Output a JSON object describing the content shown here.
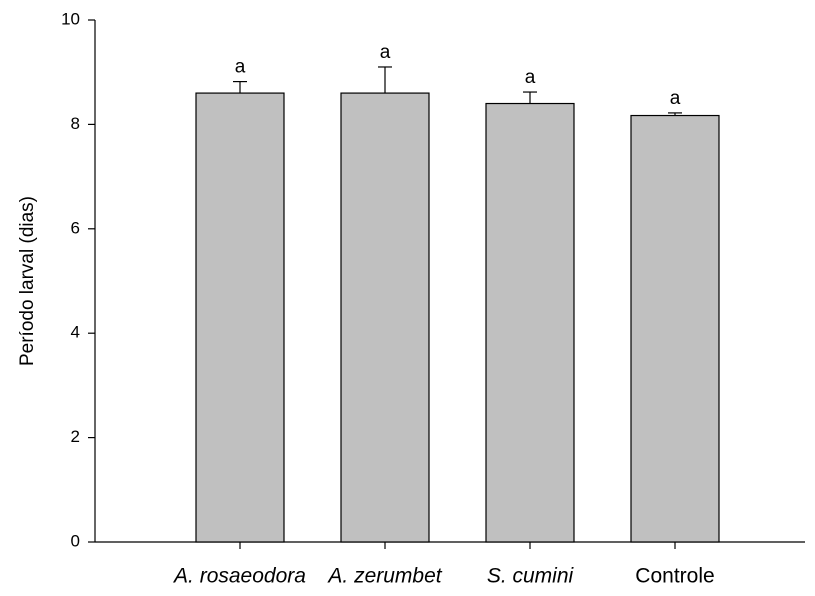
{
  "chart_data": {
    "type": "bar",
    "ylabel": "Período larval (dias)",
    "categories": [
      "A. rosaeodora",
      "A. zerumbet",
      "S. cumini",
      "Controle"
    ],
    "values": [
      8.6,
      8.6,
      8.4,
      8.17
    ],
    "errors": [
      0.22,
      0.5,
      0.22,
      0.05
    ],
    "annotations": [
      "a",
      "a",
      "a",
      "a"
    ],
    "color": "#c0c0c0",
    "ylim": [
      0,
      10
    ],
    "yticks": [
      0,
      2,
      4,
      6,
      8,
      10
    ]
  }
}
